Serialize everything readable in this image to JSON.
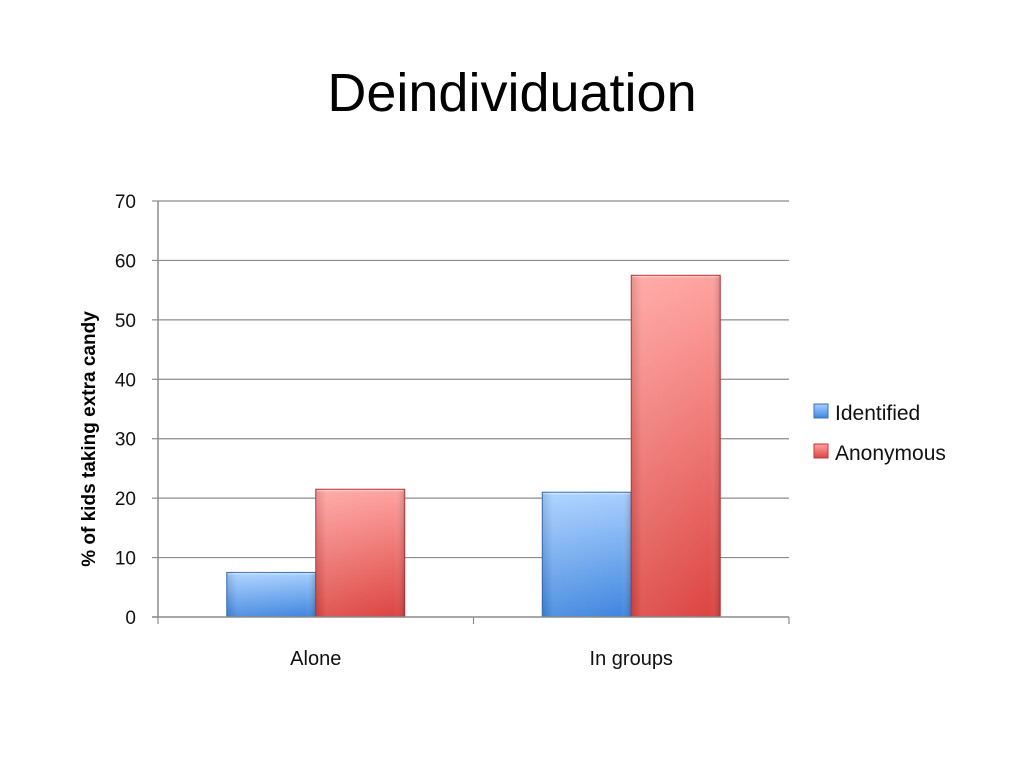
{
  "slide": {
    "title": "Deindividuation"
  },
  "chart_data": {
    "type": "bar",
    "categories": [
      "Alone",
      "In groups"
    ],
    "series": [
      {
        "name": "Identified",
        "values": [
          7.5,
          21
        ],
        "color": "#4a8fe0"
      },
      {
        "name": "Anonymous",
        "values": [
          21.5,
          57.5
        ],
        "color": "#e0504d"
      }
    ],
    "xlabel": "",
    "ylabel": "% of kids taking extra candy",
    "ylim": [
      0,
      70
    ],
    "yticks": [
      0,
      10,
      20,
      30,
      40,
      50,
      60,
      70
    ],
    "ytick_labels": [
      "0",
      "10",
      "20",
      "30",
      "40",
      "50",
      "60",
      "70"
    ],
    "grid": true,
    "legend_position": "right"
  }
}
